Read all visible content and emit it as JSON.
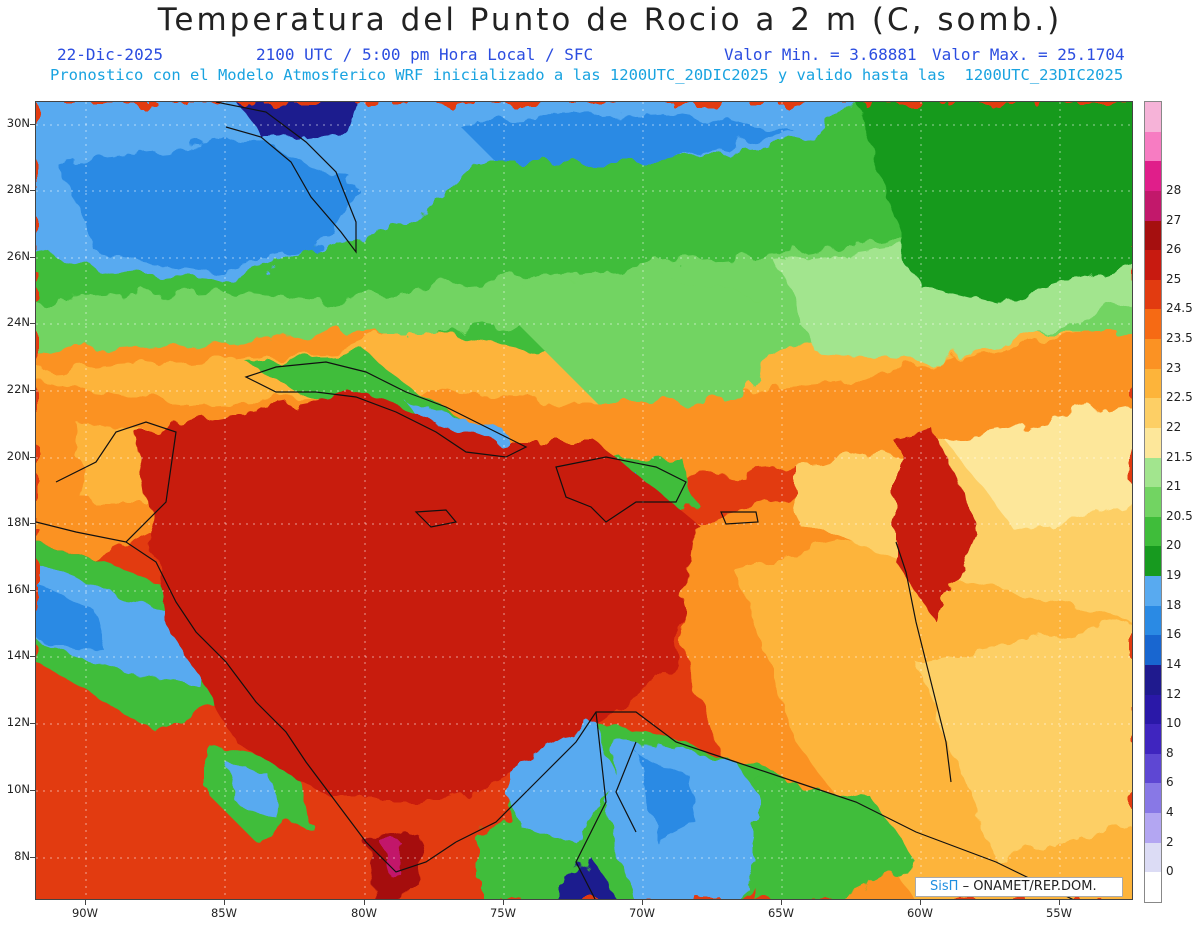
{
  "title": "Temperatura del Punto de Rocio a 2 m (C, somb.)",
  "date": "22-Dic-2025",
  "time_info": "2100 UTC / 5:00 pm Hora Local / SFC",
  "min_value": "Valor Min. = 3.68881",
  "max_value": "Valor Max. = 25.1704",
  "model_info": "Pronostico con el Modelo Atmosferico WRF inicializado a las 1200UTC_20DIC2025 y valido hasta las  1200UTC_23DIC2025",
  "lat_labels": [
    "30N",
    "28N",
    "26N",
    "24N",
    "22N",
    "20N",
    "18N",
    "16N",
    "14N",
    "12N",
    "10N",
    "8N"
  ],
  "lon_labels": [
    "90W",
    "85W",
    "80W",
    "75W",
    "70W",
    "65W",
    "60W",
    "55W"
  ],
  "legend": {
    "levels": [
      "0",
      "2",
      "4",
      "6",
      "8",
      "10",
      "12",
      "14",
      "16",
      "18",
      "19",
      "20",
      "20.5",
      "21",
      "21.5",
      "22",
      "22.5",
      "23",
      "23.5",
      "24.5",
      "25",
      "26",
      "27",
      "28"
    ],
    "colors": [
      "#ffffff",
      "#dcdcf5",
      "#b3a6f2",
      "#8878e6",
      "#5e47d3",
      "#3f25bf",
      "#2a18a8",
      "#1f1a8e",
      "#1866d0",
      "#2a8ae4",
      "#58aaf0",
      "#179a1f",
      "#3fbd3a",
      "#72d462",
      "#a2e58e",
      "#fde79a",
      "#fdcf65",
      "#fdb43a",
      "#fb9223",
      "#f66a14",
      "#e23b10",
      "#c81a10",
      "#a50f0f",
      "#c2186b",
      "#e01e8a",
      "#f77cc2",
      "#f6b3d8"
    ]
  },
  "credit": {
    "brand": "SisΠ",
    "org": "– ONAMET/REP.DOM."
  }
}
